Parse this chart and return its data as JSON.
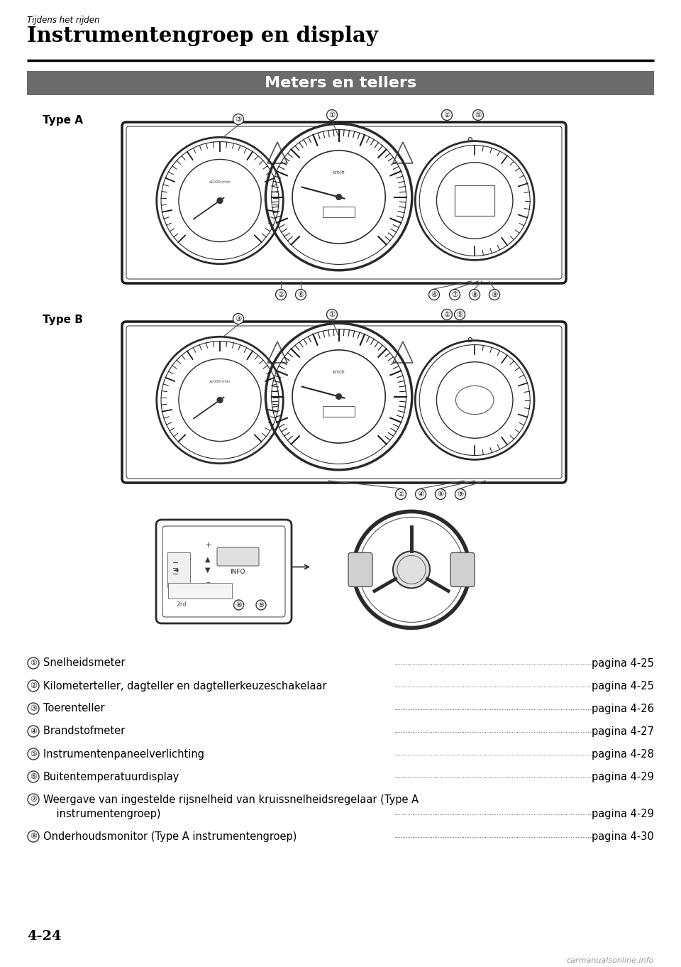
{
  "page_title_small": "Tijdens het rijden",
  "page_title_large": "Instrumentengroep en display",
  "section_title": "Meters en tellers",
  "section_bg_color": "#6b6b6b",
  "section_text_color": "#ffffff",
  "type_a_label": "Type A",
  "type_b_label": "Type B",
  "items": [
    {
      "num": "①",
      "text": "Snelheidsmeter",
      "page": "pagina 4-25"
    },
    {
      "num": "②",
      "text": "Kilometerteller, dagteller en dagtellerkeuzeschakelaar",
      "page": "pagina 4-25"
    },
    {
      "num": "③",
      "text": "Toerenteller",
      "page": "pagina 4-26"
    },
    {
      "num": "④",
      "text": "Brandstofmeter ",
      "page": "pagina 4-27"
    },
    {
      "num": "⑤",
      "text": "Instrumentenpaneelverlichting ",
      "page": "pagina 4-28"
    },
    {
      "num": "⑥",
      "text": "Buitentemperatuurdisplay",
      "page": "pagina 4-29"
    },
    {
      "num": "⑦",
      "text_line1": "Weergave van ingestelde rijsnelheid van kruissnelheidsregelaar (Type A",
      "text_line2": "    instrumentengroep)",
      "page": "pagina 4-29"
    },
    {
      "num": "⑧",
      "text": "Onderhoudsmonitor (Type A instrumentengroep)",
      "page": "pagina 4-30"
    }
  ],
  "page_number": "4-24",
  "watermark": "carmanualsonline.info",
  "bg_color": "#ffffff",
  "text_color": "#000000"
}
